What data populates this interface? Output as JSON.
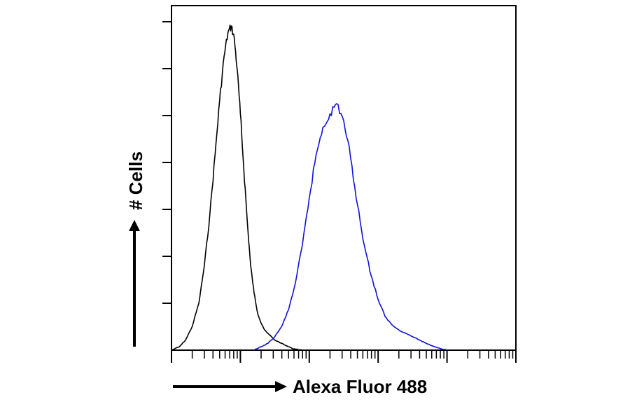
{
  "chart_data": {
    "type": "line",
    "title": "",
    "xlabel": "Alexa Fluor 488",
    "ylabel": "# Cells",
    "x_scale": "log",
    "xlim": [
      1,
      100000
    ],
    "ylim": [
      0,
      1
    ],
    "grid": false,
    "legend": "none",
    "series": [
      {
        "color": "#000000",
        "x": [
          1.0,
          1.3,
          1.6,
          2.0,
          2.5,
          3.0,
          3.6,
          4.3,
          5.0,
          5.8,
          6.6,
          7.4,
          8.2,
          9.0,
          10.0,
          11.2,
          12.6,
          14.1,
          15.8,
          17.8,
          20.0,
          22.4,
          25.1,
          28.2,
          31.6,
          35.5,
          39.8,
          44.7,
          50.1,
          56.2,
          63.1,
          70.8,
          79.4
        ],
        "y": [
          0.0,
          0.01,
          0.03,
          0.07,
          0.14,
          0.25,
          0.4,
          0.58,
          0.74,
          0.87,
          0.94,
          0.96,
          0.92,
          0.83,
          0.7,
          0.54,
          0.38,
          0.25,
          0.17,
          0.11,
          0.08,
          0.06,
          0.05,
          0.04,
          0.03,
          0.025,
          0.02,
          0.015,
          0.01,
          0.005,
          0.003,
          0.001,
          0.0
        ]
      },
      {
        "color": "#1010dd",
        "x": [
          15.8,
          20.0,
          25.1,
          31.6,
          39.8,
          50.1,
          63.1,
          79.4,
          100,
          126,
          158,
          200,
          251,
          316,
          398,
          501,
          631,
          794,
          1000,
          1259,
          1585,
          1995,
          2512,
          3162,
          3981,
          5012,
          6310,
          7943,
          10000
        ],
        "y": [
          0.0,
          0.01,
          0.02,
          0.04,
          0.07,
          0.12,
          0.2,
          0.31,
          0.45,
          0.58,
          0.66,
          0.7,
          0.73,
          0.68,
          0.57,
          0.43,
          0.31,
          0.22,
          0.15,
          0.1,
          0.075,
          0.06,
          0.05,
          0.04,
          0.03,
          0.02,
          0.012,
          0.005,
          0.0
        ]
      }
    ]
  }
}
